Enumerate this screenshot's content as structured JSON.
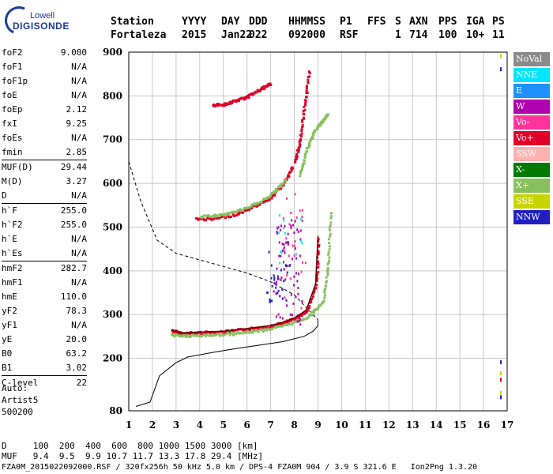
{
  "logo": {
    "line1": "Lowell",
    "line2": "DIGISONDE"
  },
  "header": {
    "row1": [
      "Station",
      "YYYY",
      "DAY",
      "DDD",
      "HHMMSS",
      "P1",
      "FFS",
      "S",
      "AXN",
      "PPS",
      "IGA",
      "PS"
    ],
    "row2": [
      "Fortaleza",
      "2015",
      "Jan22",
      "022",
      "092000",
      "RSF",
      "1",
      "714",
      "100",
      "10+",
      "11"
    ]
  },
  "params_group1": [
    {
      "k": "foF2",
      "v": "9.000"
    },
    {
      "k": "foF1",
      "v": "N/A"
    },
    {
      "k": "foF1p",
      "v": "N/A"
    },
    {
      "k": "foE",
      "v": "N/A"
    },
    {
      "k": "foEp",
      "v": "2.12"
    },
    {
      "k": "fxI",
      "v": "9.25"
    },
    {
      "k": "foEs",
      "v": "N/A"
    },
    {
      "k": "fmin",
      "v": "2.85"
    }
  ],
  "params_group2": [
    {
      "k": "MUF(D)",
      "v": "29.44"
    },
    {
      "k": "M(D)",
      "v": "3.27"
    },
    {
      "k": "D",
      "v": "N/A"
    }
  ],
  "params_group3": [
    {
      "k": "h`F",
      "v": "255.0"
    },
    {
      "k": "h`F2",
      "v": "255.0"
    },
    {
      "k": "h`E",
      "v": "N/A"
    },
    {
      "k": "h`Es",
      "v": "N/A"
    }
  ],
  "params_group4": [
    {
      "k": "hmF2",
      "v": "282.7"
    },
    {
      "k": "hmF1",
      "v": "N/A"
    },
    {
      "k": "hmE",
      "v": "110.0"
    },
    {
      "k": "yF2",
      "v": "78.3"
    },
    {
      "k": "yF1",
      "v": "N/A"
    },
    {
      "k": "yE",
      "v": "20.0"
    },
    {
      "k": "B0",
      "v": "63.2"
    },
    {
      "k": "B1",
      "v": "3.02"
    }
  ],
  "params_group5": [
    {
      "k": "C-level",
      "v": "22"
    }
  ],
  "auto": {
    "l1": "Auto:",
    "l2": "Artist5",
    "l3": "500200"
  },
  "legend": [
    {
      "label": "NoVal",
      "color": "#8a8a8a"
    },
    {
      "label": "NNE",
      "color": "#00e5ff"
    },
    {
      "label": "E",
      "color": "#1e90ff"
    },
    {
      "label": "W",
      "color": "#b000b0"
    },
    {
      "label": "Vo-",
      "color": "#ff3399"
    },
    {
      "label": "Vo+",
      "color": "#e0002a"
    },
    {
      "label": "SSW",
      "color": "#ffb0b0"
    },
    {
      "label": "X-",
      "color": "#007a00"
    },
    {
      "label": "X+",
      "color": "#88c060"
    },
    {
      "label": "SSE",
      "color": "#c8d400"
    },
    {
      "label": "NNW",
      "color": "#2020c0"
    }
  ],
  "footer": {
    "line1": "D     100  200  400  600  800 1000 1500 3000 [km]",
    "line2": "MUF   9.4  9.5  9.9 10.7 11.7 13.3 17.8 29.4 [MHz]",
    "line3": "FZA0M_2015022092000.RSF / 320fx256h 50 kHz 5.0 km / DPS-4 FZA0M 904 / 3.9 S 321.6 E   Ion2Png 1.3.20"
  },
  "chart_data": {
    "type": "scatter",
    "xlim": [
      1,
      17
    ],
    "ylim": [
      80,
      900
    ],
    "xticks": [
      1,
      2,
      3,
      4,
      5,
      6,
      7,
      8,
      9,
      10,
      11,
      12,
      13,
      14,
      15,
      16,
      17
    ],
    "yticks": [
      80,
      200,
      300,
      400,
      500,
      600,
      700,
      800,
      900
    ],
    "profile": {
      "x": [
        1.3,
        1.9,
        2.3,
        3.0,
        3.5,
        4.5,
        5.5,
        6.5,
        7.5,
        8.4,
        8.8,
        9.0,
        9.0
      ],
      "y": [
        90,
        100,
        160,
        190,
        203,
        213,
        222,
        230,
        238,
        250,
        262,
        275,
        288
      ]
    },
    "muf_curve": {
      "x": [
        1.0,
        1.5,
        2.2,
        3.0,
        4.0,
        5.0,
        6.0,
        7.0,
        8.0,
        9.0
      ],
      "y": [
        650,
        560,
        470,
        440,
        425,
        410,
        395,
        375,
        345,
        288
      ]
    },
    "traces": [
      {
        "series": "Vo+",
        "x": [
          2.8,
          3.2,
          4.0,
          5.0,
          6.0,
          7.0,
          7.5,
          8.0,
          8.5,
          8.9,
          9.0
        ],
        "y": [
          265,
          258,
          260,
          262,
          268,
          275,
          282,
          292,
          310,
          370,
          480
        ]
      },
      {
        "series": "X+",
        "x": [
          2.8,
          3.5,
          4.5,
          5.5,
          6.5,
          7.5,
          8.5,
          9.2,
          9.4,
          9.5
        ],
        "y": [
          255,
          252,
          255,
          258,
          265,
          275,
          295,
          330,
          420,
          540
        ]
      },
      {
        "series": "Vo+",
        "x": [
          3.8,
          4.5,
          5.5,
          6.3,
          7.0,
          7.5,
          7.9
        ],
        "y": [
          520,
          520,
          530,
          550,
          570,
          600,
          640
        ]
      },
      {
        "series": "X+",
        "x": [
          4.0,
          5.0,
          6.0,
          7.0,
          7.6
        ],
        "y": [
          525,
          530,
          545,
          575,
          610
        ]
      },
      {
        "series": "Vo+",
        "x": [
          4.5,
          5.0,
          5.5,
          6.0,
          6.5,
          7.0
        ],
        "y": [
          780,
          782,
          790,
          800,
          815,
          830
        ]
      },
      {
        "series": "X+",
        "x": [
          8.2,
          8.5,
          8.8,
          9.1,
          9.4
        ],
        "y": [
          620,
          680,
          720,
          740,
          760
        ]
      },
      {
        "series": "Vo+",
        "x": [
          8.0,
          8.2,
          8.4,
          8.6
        ],
        "y": [
          650,
          700,
          780,
          860
        ]
      }
    ],
    "clusters": [
      {
        "series": "W",
        "cx": 7.7,
        "cy": 400,
        "count": 70,
        "sx": 0.6,
        "sy": 120
      },
      {
        "series": "NNW",
        "cx": 7.3,
        "cy": 390,
        "count": 30,
        "sx": 0.5,
        "sy": 60
      },
      {
        "series": "Vo-",
        "cx": 8.0,
        "cy": 450,
        "count": 25,
        "sx": 0.5,
        "sy": 140
      },
      {
        "series": "NNE",
        "cx": 7.8,
        "cy": 500,
        "count": 12,
        "sx": 0.5,
        "sy": 80
      }
    ],
    "edge_marks": [
      {
        "series": "NNW",
        "x": 16.7,
        "y": 190
      },
      {
        "series": "SSE",
        "x": 16.7,
        "y": 165
      },
      {
        "series": "Vo+",
        "x": 16.7,
        "y": 150
      },
      {
        "series": "SSE",
        "x": 16.7,
        "y": 120
      },
      {
        "series": "NNW",
        "x": 16.7,
        "y": 110
      },
      {
        "series": "SSE",
        "x": 16.7,
        "y": 890
      },
      {
        "series": "NNW",
        "x": 16.7,
        "y": 860
      }
    ]
  }
}
